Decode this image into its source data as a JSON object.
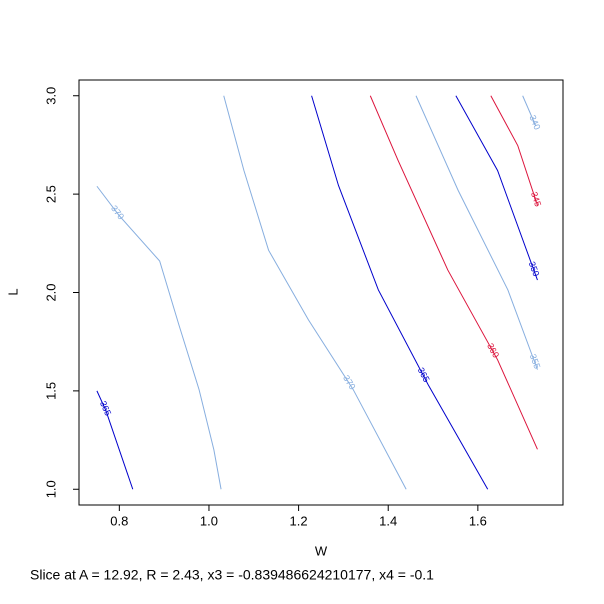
{
  "chart_data": {
    "type": "contour",
    "xlabel": "W",
    "ylabel": "L",
    "subtitle": "Slice at A = 12.92, R = 2.43, x3 = -0.839486624210177, x4 = -0.1",
    "xlim": [
      0.71,
      1.79
    ],
    "ylim": [
      0.92,
      3.08
    ],
    "xticks": [
      0.8,
      {
        "value": 1,
        "label": "1.0"
      },
      1.2,
      1.4,
      1.6
    ],
    "yticks": [
      {
        "value": 1,
        "label": "1.0"
      },
      1.5,
      {
        "value": 2,
        "label": "2.0"
      },
      2.5,
      {
        "value": 3,
        "label": "3.0"
      }
    ],
    "series": [
      {
        "name": "365",
        "level": 365,
        "color": "#0000cc",
        "x": [
          0.75,
          0.77,
          0.8,
          0.83
        ],
        "y": [
          1.5,
          1.4,
          1.2,
          1.0
        ]
      },
      {
        "name": "370",
        "level": 370,
        "color": "#87aedf",
        "x": [
          0.75,
          0.8,
          0.89,
          0.933,
          0.978,
          1.011,
          1.027
        ],
        "y": [
          2.54,
          2.39,
          2.16,
          1.835,
          1.506,
          1.2,
          1.0
        ]
      },
      {
        "name": "370",
        "level": 370,
        "color": "#87aedf",
        "x": [
          1.033,
          1.078,
          1.133,
          1.222,
          1.322,
          1.44
        ],
        "y": [
          3.0,
          2.62,
          2.215,
          1.861,
          1.506,
          1.0
        ]
      },
      {
        "name": "365",
        "level": 365,
        "color": "#0000cc",
        "x": [
          1.229,
          1.289,
          1.378,
          1.489,
          1.622
        ],
        "y": [
          3.0,
          2.544,
          2.013,
          1.532,
          1.0
        ]
      },
      {
        "name": "360",
        "level": 360,
        "color": "#dc143c",
        "x": [
          1.36,
          1.422,
          1.533,
          1.644,
          1.733
        ],
        "y": [
          3.0,
          2.671,
          2.114,
          1.658,
          1.203
        ]
      },
      {
        "name": "355",
        "level": 355,
        "color": "#87aedf",
        "x": [
          1.462,
          1.556,
          1.667,
          1.733
        ],
        "y": [
          3.0,
          2.519,
          2.013,
          1.608
        ]
      },
      {
        "name": "350",
        "level": 350,
        "color": "#0000cc",
        "x": [
          1.551,
          1.644,
          1.733
        ],
        "y": [
          3.0,
          2.62,
          2.063
        ]
      },
      {
        "name": "345",
        "level": 345,
        "color": "#dc143c",
        "x": [
          1.629,
          1.689,
          1.733
        ],
        "y": [
          3.0,
          2.747,
          2.443
        ]
      },
      {
        "name": "340",
        "level": 340,
        "color": "#87aedf",
        "x": [
          1.7,
          1.729
        ],
        "y": [
          3.0,
          2.848
        ]
      }
    ]
  }
}
